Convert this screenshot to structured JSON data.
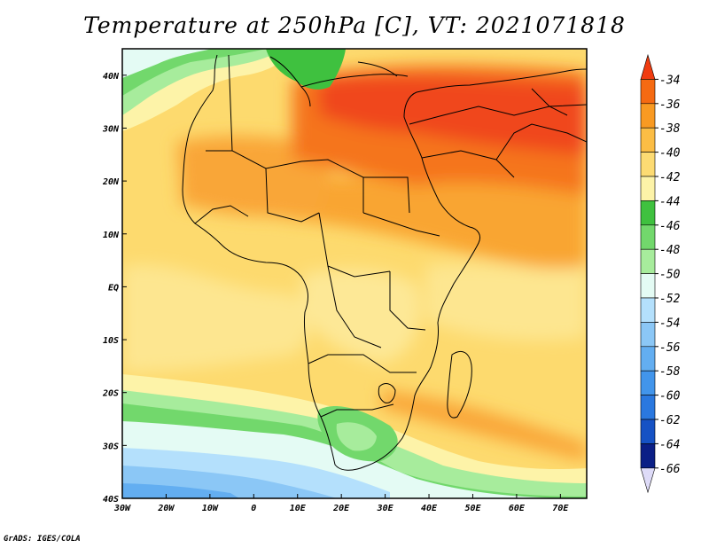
{
  "title": "Temperature at 250hPa [C], VT: 2021071818",
  "credit": "GrADS: IGES/COLA",
  "map": {
    "lon_range": [
      -30,
      76
    ],
    "lat_range": [
      -40,
      45
    ],
    "x_ticks": [
      {
        "lon": -30,
        "label": "30W"
      },
      {
        "lon": -20,
        "label": "20W"
      },
      {
        "lon": -10,
        "label": "10W"
      },
      {
        "lon": 0,
        "label": "0"
      },
      {
        "lon": 10,
        "label": "10E"
      },
      {
        "lon": 20,
        "label": "20E"
      },
      {
        "lon": 30,
        "label": "30E"
      },
      {
        "lon": 40,
        "label": "40E"
      },
      {
        "lon": 50,
        "label": "50E"
      },
      {
        "lon": 60,
        "label": "60E"
      },
      {
        "lon": 70,
        "label": "70E"
      }
    ],
    "y_ticks": [
      {
        "lat": 40,
        "label": "40N"
      },
      {
        "lat": 30,
        "label": "30N"
      },
      {
        "lat": 20,
        "label": "20N"
      },
      {
        "lat": 10,
        "label": "10N"
      },
      {
        "lat": 0,
        "label": "EQ"
      },
      {
        "lat": -10,
        "label": "10S"
      },
      {
        "lat": -20,
        "label": "20S"
      },
      {
        "lat": -30,
        "label": "30S"
      },
      {
        "lat": -40,
        "label": "40S"
      }
    ]
  },
  "colorbar": {
    "levels": [
      "-34",
      "-36",
      "-38",
      "-40",
      "-42",
      "-44",
      "-46",
      "-48",
      "-50",
      "-52",
      "-54",
      "-56",
      "-58",
      "-60",
      "-62",
      "-64",
      "-66"
    ],
    "colors": [
      "#f03c10",
      "#f56a12",
      "#f99a22",
      "#fbbd45",
      "#fddb73",
      "#fdf3a8",
      "#3fc13f",
      "#72d86c",
      "#a7ec9c",
      "#e4fbf4",
      "#b4e0fc",
      "#8bc7f6",
      "#63aef1",
      "#4295eb",
      "#2a78df",
      "#1652c4",
      "#0b1f86",
      "#dedbf8"
    ]
  }
}
